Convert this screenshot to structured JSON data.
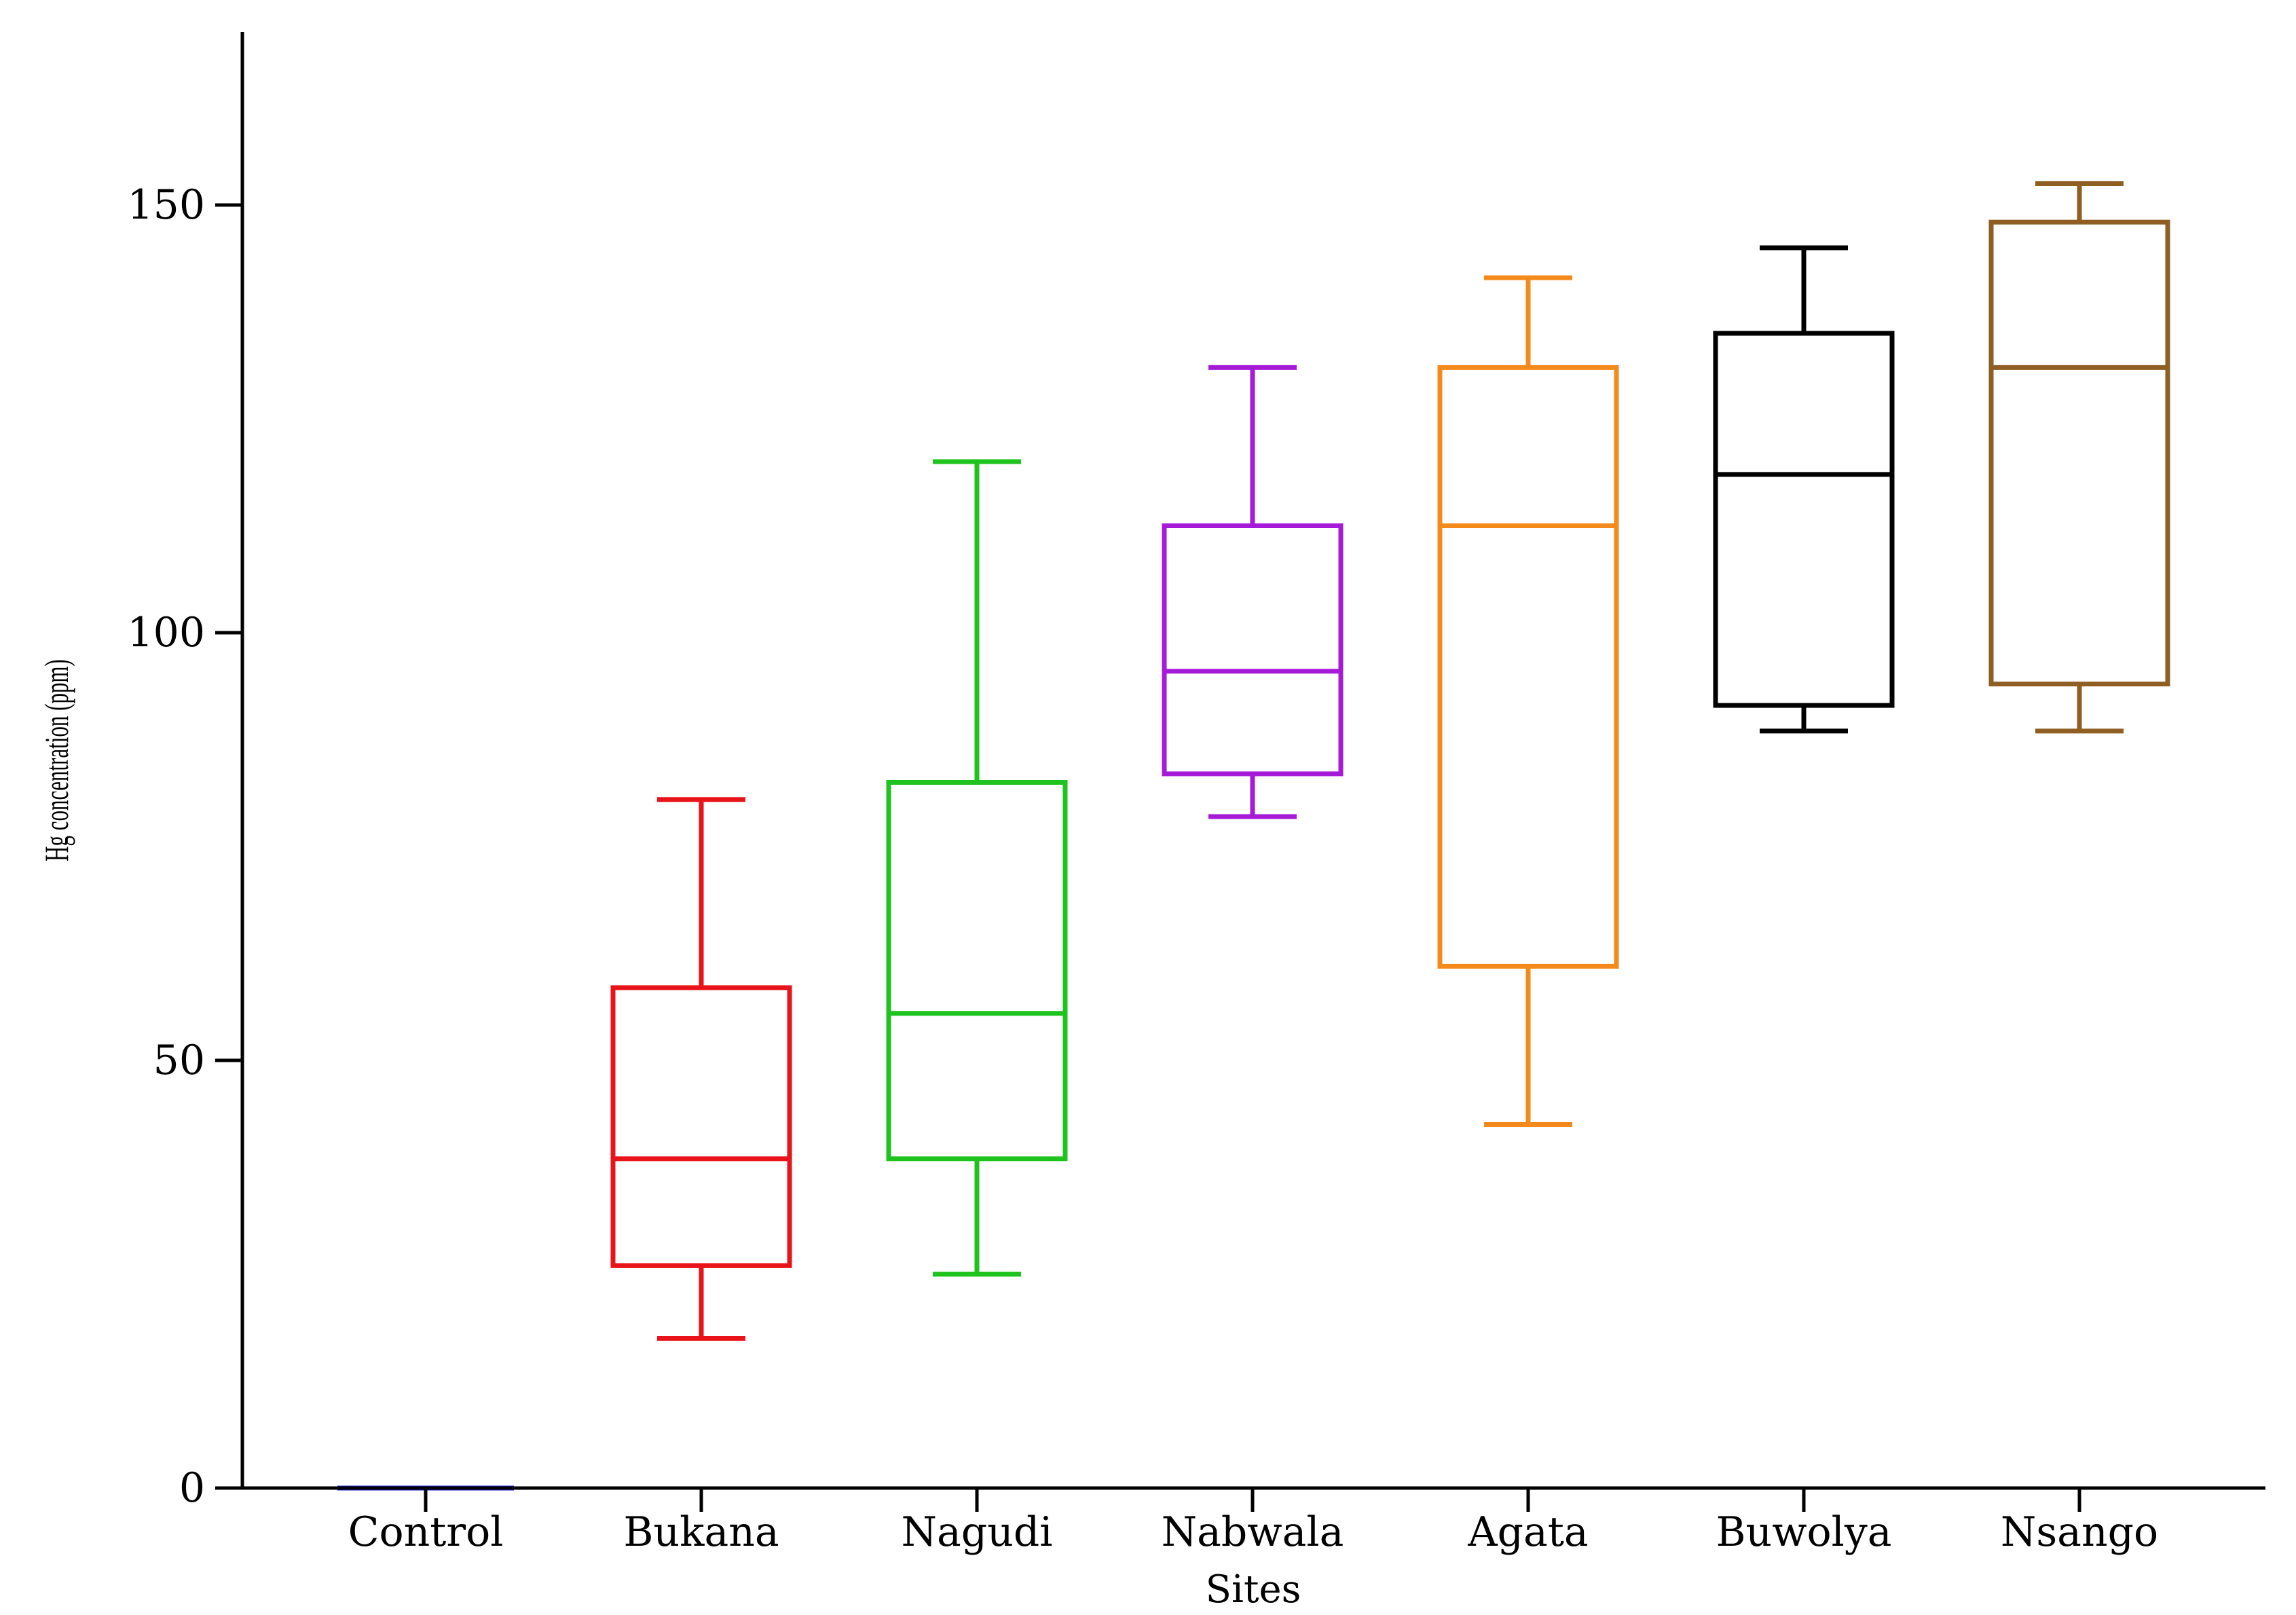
{
  "chart_data": {
    "type": "box",
    "title": "",
    "xlabel": "Sites",
    "ylabel": "Hg concentration (ppm)",
    "ylim": [
      0,
      170
    ],
    "yticks": [
      0,
      50,
      100,
      150
    ],
    "grid": false,
    "legend": "none",
    "categories": [
      "Control",
      "Bukana",
      "Nagudi",
      "Nabwala",
      "Agata",
      "Buwolya",
      "Nsango"
    ],
    "boxes": [
      {
        "name": "Control",
        "min": 0,
        "q1": 0,
        "median": 0,
        "q3": 0,
        "max": 0,
        "color": "#1a1adb"
      },
      {
        "name": "Bukana",
        "min": 17.5,
        "q1": 26,
        "median": 38.5,
        "q3": 58.5,
        "max": 80.5,
        "color": "#e8141a"
      },
      {
        "name": "Nagudi",
        "min": 25,
        "q1": 38.5,
        "median": 55.5,
        "q3": 82.5,
        "max": 120,
        "color": "#1ec31e"
      },
      {
        "name": "Nabwala",
        "min": 78.5,
        "q1": 83.5,
        "median": 95.5,
        "q3": 112.5,
        "max": 131,
        "color": "#a51bd8"
      },
      {
        "name": "Agata",
        "min": 42.5,
        "q1": 61,
        "median": 112.5,
        "q3": 131,
        "max": 141.5,
        "color": "#f58a1c"
      },
      {
        "name": "Buwolya",
        "min": 88.5,
        "q1": 91.5,
        "median": 118.5,
        "q3": 135,
        "max": 145,
        "color": "#000000"
      },
      {
        "name": "Nsango",
        "min": 88.5,
        "q1": 94,
        "median": 131,
        "q3": 148,
        "max": 152.5,
        "color": "#8f5e23"
      }
    ]
  }
}
